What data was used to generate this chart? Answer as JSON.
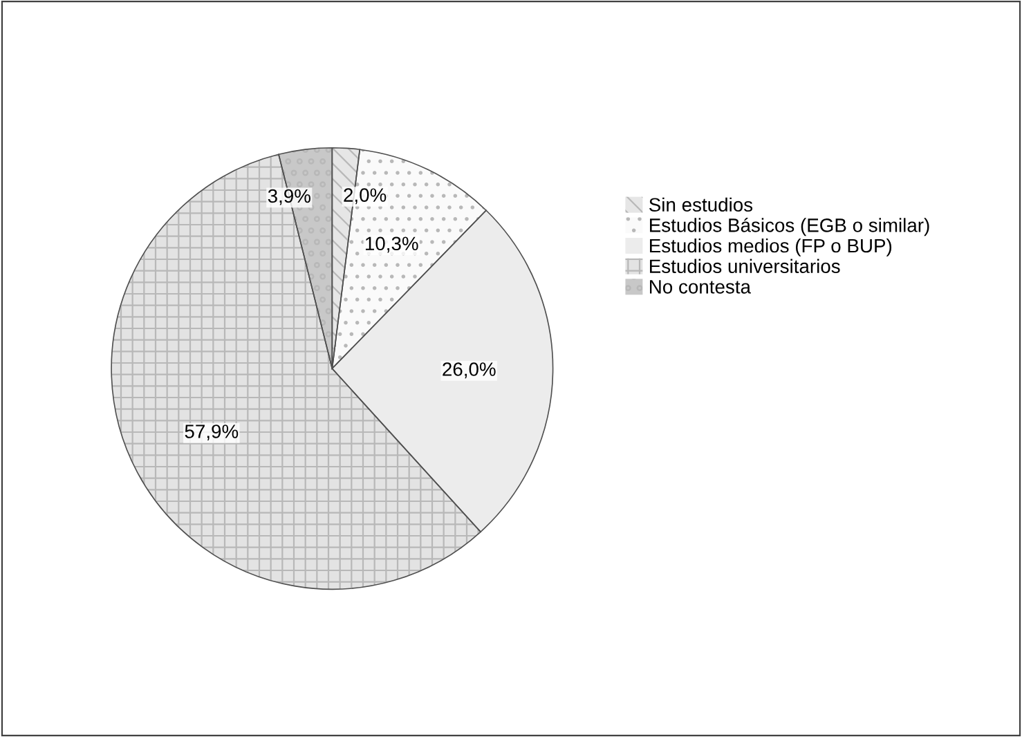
{
  "chart_data": {
    "type": "pie",
    "categories": [
      "Sin estudios",
      "Estudios Básicos (EGB o similar)",
      "Estudios medios (FP o BUP)",
      "Estudios universitarios",
      "No contesta"
    ],
    "values": [
      2.0,
      10.3,
      26.0,
      57.9,
      3.9
    ],
    "value_labels": [
      "2,0%",
      "10,3%",
      "26,0%",
      "57,9%",
      "3,9%"
    ],
    "colors": [
      "#e6e6e6",
      "#fafafa",
      "#ececec",
      "#e3e3e3",
      "#c8c8c8"
    ],
    "legend": "right"
  }
}
